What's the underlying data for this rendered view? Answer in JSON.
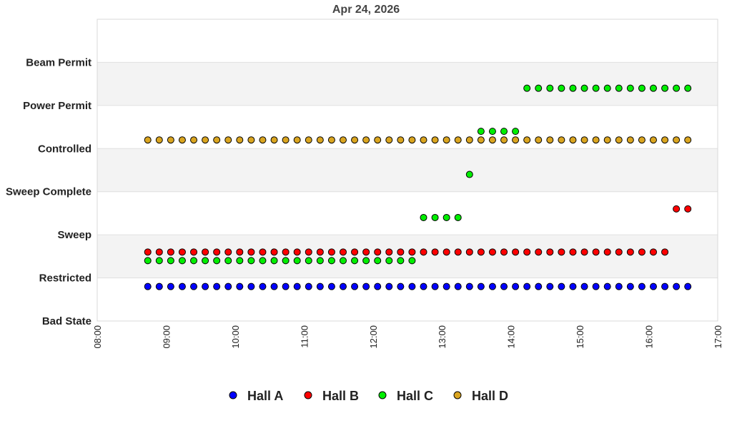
{
  "chart_data": {
    "type": "scatter",
    "title": "Apr 24, 2026",
    "xlabel": "",
    "ylabel": "",
    "xlim": [
      "08:00",
      "17:00"
    ],
    "x_ticks": [
      "08:00",
      "09:00",
      "10:00",
      "11:00",
      "12:00",
      "13:00",
      "14:00",
      "15:00",
      "16:00",
      "17:00"
    ],
    "ylim": [
      0,
      7
    ],
    "y_ticks": [
      {
        "value": 0,
        "label": "Bad State"
      },
      {
        "value": 1,
        "label": "Restricted"
      },
      {
        "value": 2,
        "label": "Sweep"
      },
      {
        "value": 3,
        "label": "Sweep Complete"
      },
      {
        "value": 4,
        "label": "Controlled"
      },
      {
        "value": 5,
        "label": "Power Permit"
      },
      {
        "value": 6,
        "label": "Beam Permit"
      }
    ],
    "grid": true,
    "legend_position": "bottom",
    "x": [
      "08:44",
      "08:54",
      "09:04",
      "09:14",
      "09:24",
      "09:34",
      "09:44",
      "09:54",
      "10:04",
      "10:14",
      "10:24",
      "10:34",
      "10:44",
      "10:54",
      "11:04",
      "11:14",
      "11:24",
      "11:34",
      "11:44",
      "11:54",
      "12:04",
      "12:14",
      "12:24",
      "12:34",
      "12:44",
      "12:54",
      "13:04",
      "13:14",
      "13:24",
      "13:34",
      "13:44",
      "13:54",
      "14:04",
      "14:14",
      "14:24",
      "14:34",
      "14:44",
      "14:54",
      "15:04",
      "15:14",
      "15:24",
      "15:34",
      "15:44",
      "15:54",
      "16:04",
      "16:14",
      "16:24",
      "16:34"
    ],
    "series": [
      {
        "name": "Hall A",
        "color": "#0000ff",
        "values": [
          0.8,
          0.8,
          0.8,
          0.8,
          0.8,
          0.8,
          0.8,
          0.8,
          0.8,
          0.8,
          0.8,
          0.8,
          0.8,
          0.8,
          0.8,
          0.8,
          0.8,
          0.8,
          0.8,
          0.8,
          0.8,
          0.8,
          0.8,
          0.8,
          0.8,
          0.8,
          0.8,
          0.8,
          0.8,
          0.8,
          0.8,
          0.8,
          0.8,
          0.8,
          0.8,
          0.8,
          0.8,
          0.8,
          0.8,
          0.8,
          0.8,
          0.8,
          0.8,
          0.8,
          0.8,
          0.8,
          0.8,
          0.8
        ]
      },
      {
        "name": "Hall B",
        "color": "#ff0000",
        "values": [
          1.6,
          1.6,
          1.6,
          1.6,
          1.6,
          1.6,
          1.6,
          1.6,
          1.6,
          1.6,
          1.6,
          1.6,
          1.6,
          1.6,
          1.6,
          1.6,
          1.6,
          1.6,
          1.6,
          1.6,
          1.6,
          1.6,
          1.6,
          1.6,
          1.6,
          1.6,
          1.6,
          1.6,
          1.6,
          1.6,
          1.6,
          1.6,
          1.6,
          1.6,
          1.6,
          1.6,
          1.6,
          1.6,
          1.6,
          1.6,
          1.6,
          1.6,
          1.6,
          1.6,
          1.6,
          1.6,
          2.6,
          2.6
        ]
      },
      {
        "name": "Hall C",
        "color": "#00ee00",
        "values": [
          1.4,
          1.4,
          1.4,
          1.4,
          1.4,
          1.4,
          1.4,
          1.4,
          1.4,
          1.4,
          1.4,
          1.4,
          1.4,
          1.4,
          1.4,
          1.4,
          1.4,
          1.4,
          1.4,
          1.4,
          1.4,
          1.4,
          1.4,
          1.4,
          2.4,
          2.4,
          2.4,
          2.4,
          3.4,
          4.4,
          4.4,
          4.4,
          4.4,
          5.4,
          5.4,
          5.4,
          5.4,
          5.4,
          5.4,
          5.4,
          5.4,
          5.4,
          5.4,
          5.4,
          5.4,
          5.4,
          5.4,
          5.4
        ]
      },
      {
        "name": "Hall D",
        "color": "#daa520",
        "values": [
          4.2,
          4.2,
          4.2,
          4.2,
          4.2,
          4.2,
          4.2,
          4.2,
          4.2,
          4.2,
          4.2,
          4.2,
          4.2,
          4.2,
          4.2,
          4.2,
          4.2,
          4.2,
          4.2,
          4.2,
          4.2,
          4.2,
          4.2,
          4.2,
          4.2,
          4.2,
          4.2,
          4.2,
          4.2,
          4.2,
          4.2,
          4.2,
          4.2,
          4.2,
          4.2,
          4.2,
          4.2,
          4.2,
          4.2,
          4.2,
          4.2,
          4.2,
          4.2,
          4.2,
          4.2,
          4.2,
          4.2,
          4.2
        ]
      }
    ]
  }
}
